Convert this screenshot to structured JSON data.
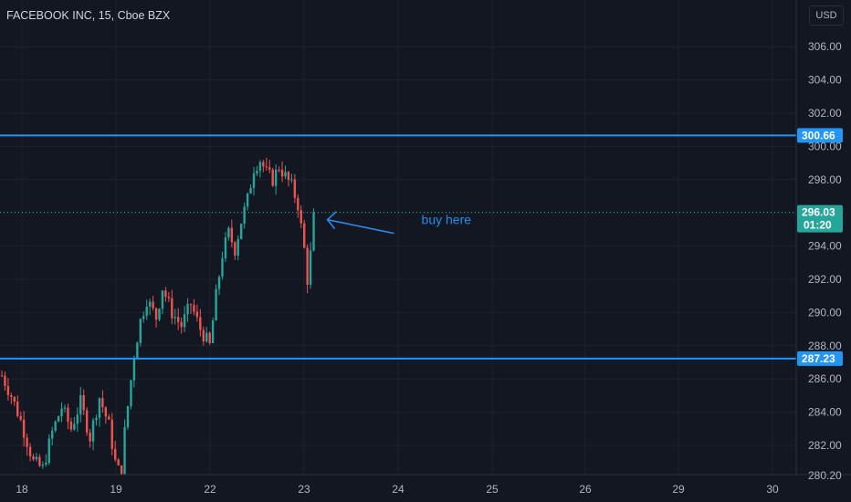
{
  "header": {
    "title": "FACEBOOK INC, 15, Cboe BZX",
    "currency": "USD"
  },
  "colors": {
    "background": "#131722",
    "grid": "#1e222d",
    "up": "#26a69a",
    "down": "#ef5350",
    "level_line": "#2196f3",
    "price_tag": "#26a69a",
    "annotation": "#2a89ea",
    "axis_text": "#b2b5be"
  },
  "chart_data": {
    "type": "candlestick",
    "title": "FACEBOOK INC, 15, Cboe BZX",
    "y_ticks": [
      "280.20",
      "282.00",
      "284.00",
      "286.00",
      "288.00",
      "290.00",
      "292.00",
      "294.00",
      "296.00",
      "298.00",
      "300.00",
      "302.00",
      "304.00",
      "306.00"
    ],
    "x_ticks": [
      "18",
      "19",
      "22",
      "23",
      "24",
      "25",
      "26",
      "29",
      "30"
    ],
    "ylim": [
      279.5,
      307.5
    ],
    "grid": true,
    "levels": [
      {
        "label": "300.66",
        "value": 300.66
      },
      {
        "label": "287.23",
        "value": 287.23
      }
    ],
    "last_price": {
      "label": "296.03",
      "value": 296.03,
      "countdown": "01:20"
    },
    "annotation": {
      "text": "buy here"
    },
    "candle_close_path": [
      [
        0,
        286.2
      ],
      [
        3,
        285.0
      ],
      [
        6,
        283.5
      ],
      [
        10,
        281.0
      ],
      [
        13,
        280.6
      ],
      [
        16,
        282.8
      ],
      [
        19,
        284.3
      ],
      [
        22,
        283.0
      ],
      [
        25,
        284.6
      ],
      [
        28,
        282.5
      ],
      [
        31,
        284.9
      ],
      [
        34,
        283.2
      ],
      [
        36,
        281.0
      ],
      [
        38,
        280.0
      ],
      [
        39,
        282.8
      ],
      [
        42,
        287.5
      ],
      [
        44,
        289.5
      ],
      [
        46,
        290.8
      ],
      [
        49,
        289.7
      ],
      [
        51,
        291.5
      ],
      [
        54,
        290.0
      ],
      [
        57,
        289.2
      ],
      [
        60,
        290.5
      ],
      [
        63,
        289.0
      ],
      [
        66,
        288.0
      ],
      [
        68,
        291.0
      ],
      [
        70,
        293.5
      ],
      [
        72,
        294.8
      ],
      [
        74,
        293.8
      ],
      [
        76,
        295.5
      ],
      [
        78,
        296.8
      ],
      [
        80,
        298.7
      ],
      [
        82,
        299.2
      ],
      [
        84,
        298.4
      ],
      [
        86,
        298.0
      ],
      [
        88,
        298.8
      ],
      [
        90,
        298.2
      ],
      [
        92,
        297.6
      ],
      [
        94,
        296.5
      ],
      [
        96,
        293.8
      ],
      [
        97,
        292.0
      ],
      [
        98,
        293.5
      ],
      [
        99,
        296.0
      ]
    ]
  }
}
